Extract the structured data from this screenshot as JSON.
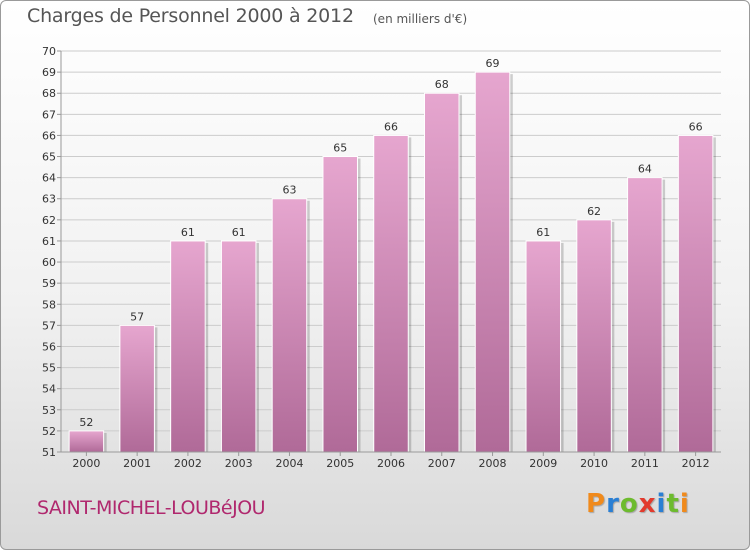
{
  "title": "Charges de Personnel 2000 à 2012",
  "unit_note": "(en milliers d'€)",
  "commune": "SAINT-MICHEL-LOUBéJOU",
  "logo": {
    "text": "Proxiti",
    "letters": [
      "P",
      "r",
      "o",
      "x",
      "i",
      "t",
      "i"
    ],
    "colors": [
      "#f08a1c",
      "#2a7fd4",
      "#6dbb2e",
      "#e23b2e",
      "#2a7fd4",
      "#6dbb2e",
      "#f08a1c"
    ]
  },
  "colors": {
    "bar_top": "#e6a6cf",
    "bar_bottom": "#b06a98",
    "axis": "#999999",
    "grid": "#cccccc",
    "commune_text": "#b0286e"
  },
  "chart_data": {
    "type": "bar",
    "title": "Charges de Personnel 2000 à 2012",
    "subtitle": "(en milliers d'€)",
    "categories": [
      "2000",
      "2001",
      "2002",
      "2003",
      "2004",
      "2005",
      "2006",
      "2007",
      "2008",
      "2009",
      "2010",
      "2011",
      "2012"
    ],
    "values": [
      52,
      57,
      61,
      61,
      63,
      65,
      66,
      68,
      69,
      61,
      62,
      64,
      66
    ],
    "ylim": [
      51,
      70
    ],
    "yticks": [
      51,
      52,
      53,
      54,
      55,
      56,
      57,
      58,
      59,
      60,
      61,
      62,
      63,
      64,
      65,
      66,
      67,
      68,
      69,
      70
    ],
    "xlabel": "",
    "ylabel": "",
    "grid": true,
    "data_labels": true
  }
}
